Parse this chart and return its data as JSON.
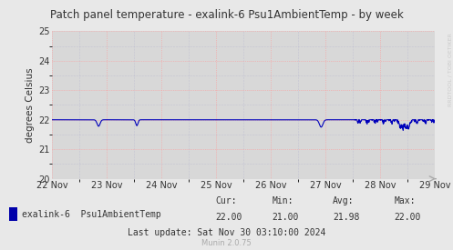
{
  "title": "Patch panel temperature - exalink-6 Psu1AmbientTemp - by week",
  "ylabel": "degrees Celsius",
  "bg_color": "#e8e8e8",
  "plot_bg_color": "#d8d8d8",
  "line_color": "#0000bb",
  "grid_major_color": "#ff9999",
  "grid_minor_color": "#aaaacc",
  "ylim": [
    20,
    25
  ],
  "yticks": [
    20,
    21,
    22,
    23,
    24,
    25
  ],
  "x_start": 0,
  "x_end": 7,
  "xtick_labels": [
    "22 Nov",
    "23 Nov",
    "24 Nov",
    "25 Nov",
    "26 Nov",
    "27 Nov",
    "28 Nov",
    "29 Nov"
  ],
  "xtick_positions": [
    0,
    1,
    2,
    3,
    4,
    5,
    6,
    7
  ],
  "legend_label": "exalink-6  Psu1AmbientTemp",
  "cur": "22.00",
  "min": "21.00",
  "avg": "21.98",
  "max": "22.00",
  "last_update": "Last update: Sat Nov 30 03:10:00 2024",
  "munin_version": "Munin 2.0.75",
  "rrdtool_label": "RRDTOOL / TOBI OETIKER",
  "text_color": "#333333",
  "legend_square_color": "#0000aa",
  "arrow_color": "#aaaaaa"
}
